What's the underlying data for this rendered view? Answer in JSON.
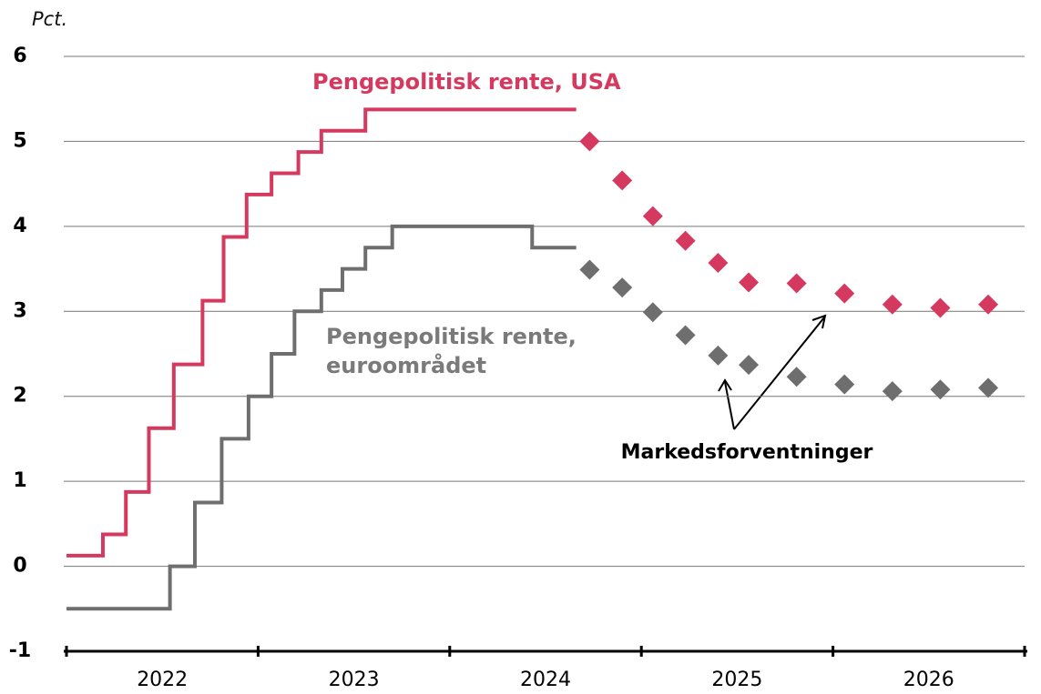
{
  "chart_data": {
    "type": "step-line",
    "y_unit_label": "Pct.",
    "annotation": "Markedsforventninger",
    "xlim": [
      2022,
      2027
    ],
    "x_tick_marks": [
      2022,
      2023,
      2024,
      2025,
      2026,
      2027
    ],
    "xticks": [
      {
        "value": 2022.5,
        "label": "2022"
      },
      {
        "value": 2023.5,
        "label": "2023"
      },
      {
        "value": 2024.5,
        "label": "2024"
      },
      {
        "value": 2025.5,
        "label": "2025"
      },
      {
        "value": 2026.5,
        "label": "2026"
      }
    ],
    "ylim": [
      -1,
      6
    ],
    "yticks": [
      -1,
      0,
      1,
      2,
      3,
      4,
      5,
      6
    ],
    "grid": true,
    "series": [
      {
        "name": "Pengepolitisk rente, USA",
        "color": "#d6395f",
        "x": [
          2022.0,
          2022.19,
          2022.31,
          2022.43,
          2022.56,
          2022.71,
          2022.82,
          2022.94,
          2023.07,
          2023.21,
          2023.33,
          2023.56,
          2024.66
        ],
        "values": [
          0.125,
          0.375,
          0.875,
          1.625,
          2.375,
          3.125,
          3.875,
          4.375,
          4.625,
          4.875,
          5.125,
          5.375,
          5.375
        ],
        "forecast_x": [
          2024.73,
          2024.9,
          2025.06,
          2025.23,
          2025.4,
          2025.56,
          2025.81,
          2026.06,
          2026.31,
          2026.56,
          2026.81
        ],
        "forecast_values": [
          5.0,
          4.54,
          4.12,
          3.83,
          3.57,
          3.34,
          3.33,
          3.21,
          3.08,
          3.04,
          3.08
        ]
      },
      {
        "name": "Pengepolitisk rente, euroområdet",
        "color": "#6e6e6e",
        "x": [
          2022.0,
          2022.54,
          2022.67,
          2022.81,
          2022.95,
          2023.07,
          2023.19,
          2023.33,
          2023.44,
          2023.56,
          2023.7,
          2024.43,
          2024.66
        ],
        "values": [
          -0.5,
          0,
          0.75,
          1.5,
          2.0,
          2.5,
          3.0,
          3.25,
          3.5,
          3.75,
          4.0,
          3.75,
          3.75
        ],
        "forecast_x": [
          2024.73,
          2024.9,
          2025.06,
          2025.23,
          2025.4,
          2025.56,
          2025.81,
          2026.06,
          2026.31,
          2026.56,
          2026.81
        ],
        "forecast_values": [
          3.49,
          3.28,
          2.99,
          2.72,
          2.48,
          2.37,
          2.23,
          2.14,
          2.06,
          2.08,
          2.1
        ]
      }
    ]
  }
}
